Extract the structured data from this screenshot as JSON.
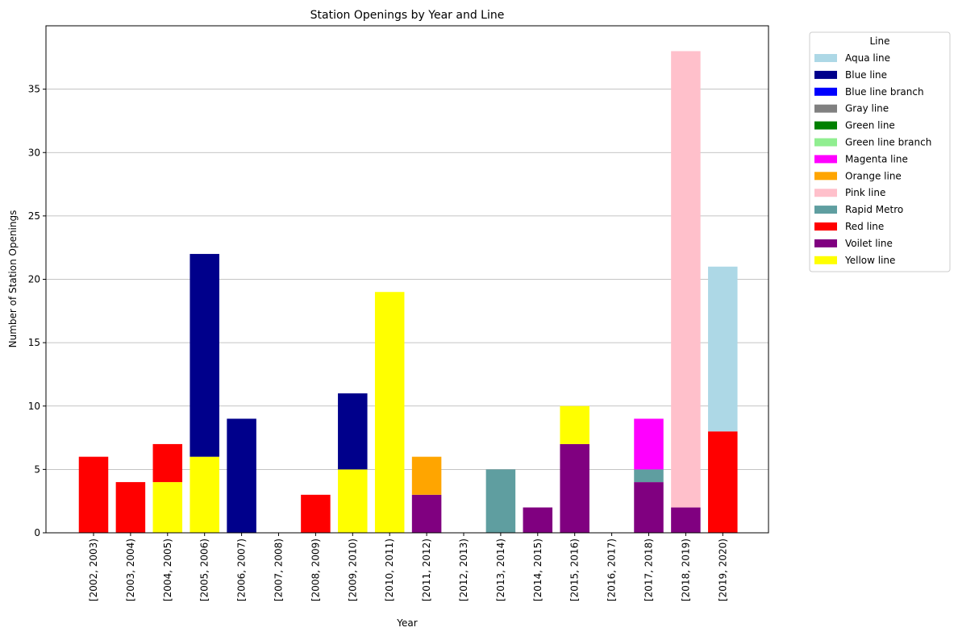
{
  "chart_data": {
    "type": "bar",
    "stacked": true,
    "title": "Station Openings by Year and Line",
    "xlabel": "Year",
    "ylabel": "Number of Station Openings",
    "ylim": [
      0,
      40
    ],
    "yticks": [
      0,
      5,
      10,
      15,
      20,
      25,
      30,
      35
    ],
    "grid": "y",
    "legend_title": "Line",
    "legend_position": "outside-right",
    "categories": [
      "[2002, 2003)",
      "[2003, 2004)",
      "[2004, 2005)",
      "[2005, 2006)",
      "[2006, 2007)",
      "[2007, 2008)",
      "[2008, 2009)",
      "[2009, 2010)",
      "[2010, 2011)",
      "[2011, 2012)",
      "[2012, 2013)",
      "[2013, 2014)",
      "[2014, 2015)",
      "[2015, 2016)",
      "[2016, 2017)",
      "[2017, 2018)",
      "[2018, 2019)",
      "[2019, 2020)"
    ],
    "series": [
      {
        "name": "Aqua line",
        "color": "#add8e6",
        "values": [
          0,
          0,
          0,
          0,
          0,
          0,
          0,
          0,
          0,
          0,
          0,
          0,
          0,
          0,
          0,
          0,
          0,
          13
        ]
      },
      {
        "name": "Blue line",
        "color": "#00008b",
        "values": [
          0,
          0,
          0,
          16,
          9,
          0,
          0,
          6,
          0,
          0,
          0,
          0,
          0,
          0,
          0,
          0,
          0,
          0
        ]
      },
      {
        "name": "Blue line branch",
        "color": "#0000ff",
        "values": [
          0,
          0,
          0,
          0,
          0,
          0,
          0,
          0,
          0,
          0,
          0,
          0,
          0,
          0,
          0,
          0,
          0,
          0
        ]
      },
      {
        "name": "Gray line",
        "color": "#808080",
        "values": [
          0,
          0,
          0,
          0,
          0,
          0,
          0,
          0,
          0,
          0,
          0,
          0,
          0,
          0,
          0,
          0,
          0,
          0
        ]
      },
      {
        "name": "Green line",
        "color": "#008000",
        "values": [
          0,
          0,
          0,
          0,
          0,
          0,
          0,
          0,
          0,
          0,
          0,
          0,
          0,
          0,
          0,
          0,
          0,
          0
        ]
      },
      {
        "name": "Green line branch",
        "color": "#90ee90",
        "values": [
          0,
          0,
          0,
          0,
          0,
          0,
          0,
          0,
          0,
          0,
          0,
          0,
          0,
          0,
          0,
          0,
          0,
          0
        ]
      },
      {
        "name": "Magenta line",
        "color": "#ff00ff",
        "values": [
          0,
          0,
          0,
          0,
          0,
          0,
          0,
          0,
          0,
          0,
          0,
          0,
          0,
          0,
          0,
          4,
          0,
          0
        ]
      },
      {
        "name": "Orange line",
        "color": "#ffa500",
        "values": [
          0,
          0,
          0,
          0,
          0,
          0,
          0,
          0,
          0,
          3,
          0,
          0,
          0,
          0,
          0,
          0,
          0,
          0
        ]
      },
      {
        "name": "Pink line",
        "color": "#ffc0cb",
        "values": [
          0,
          0,
          0,
          0,
          0,
          0,
          0,
          0,
          0,
          0,
          0,
          0,
          0,
          0,
          0,
          0,
          36,
          0
        ]
      },
      {
        "name": "Rapid Metro",
        "color": "#5f9ea0",
        "values": [
          0,
          0,
          0,
          0,
          0,
          0,
          0,
          0,
          0,
          0,
          0,
          5,
          0,
          0,
          0,
          1,
          0,
          0
        ]
      },
      {
        "name": "Red line",
        "color": "#ff0000",
        "values": [
          6,
          4,
          3,
          0,
          0,
          0,
          3,
          0,
          0,
          0,
          0,
          0,
          0,
          0,
          0,
          0,
          0,
          8
        ]
      },
      {
        "name": "Voilet line",
        "color": "#800080",
        "values": [
          0,
          0,
          0,
          0,
          0,
          0,
          0,
          0,
          0,
          3,
          0,
          0,
          2,
          7,
          0,
          4,
          2,
          0
        ]
      },
      {
        "name": "Yellow line",
        "color": "#ffff00",
        "values": [
          0,
          0,
          4,
          6,
          0,
          0,
          0,
          5,
          19,
          0,
          0,
          0,
          0,
          3,
          0,
          0,
          0,
          0
        ]
      }
    ],
    "stack_order": [
      "Voilet line",
      "Yellow line",
      "Red line",
      "Rapid Metro",
      "Orange line",
      "Blue line",
      "Magenta line",
      "Pink line",
      "Aqua line",
      "Blue line branch",
      "Gray line",
      "Green line",
      "Green line branch"
    ]
  }
}
